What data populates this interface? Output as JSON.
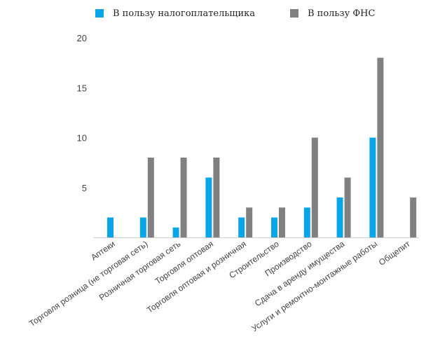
{
  "chart_data": {
    "type": "bar",
    "categories": [
      "Аптеки",
      "Торговля розница (не торговая сеть)",
      "Розничная торговая сеть",
      "Торговля оптовая",
      "Торговля оптовая и розничная",
      "Строительство",
      "Производство",
      "Сдача в аренду имущества",
      "Услуги и ремонтно-монтажные работы",
      "Общепит"
    ],
    "series": [
      {
        "name": "В пользу налогоплательщика",
        "color": "#0aa5e6",
        "values": [
          2,
          2,
          1,
          6,
          2,
          2,
          3,
          4,
          10,
          0
        ]
      },
      {
        "name": "В пользу ФНС",
        "color": "#808082",
        "values": [
          0,
          8,
          8,
          8,
          3,
          3,
          10,
          6,
          18,
          4
        ]
      }
    ],
    "yticks": [
      5,
      10,
      15,
      20
    ],
    "ylim": [
      0,
      20
    ],
    "grid": false,
    "legend_position": "top"
  }
}
